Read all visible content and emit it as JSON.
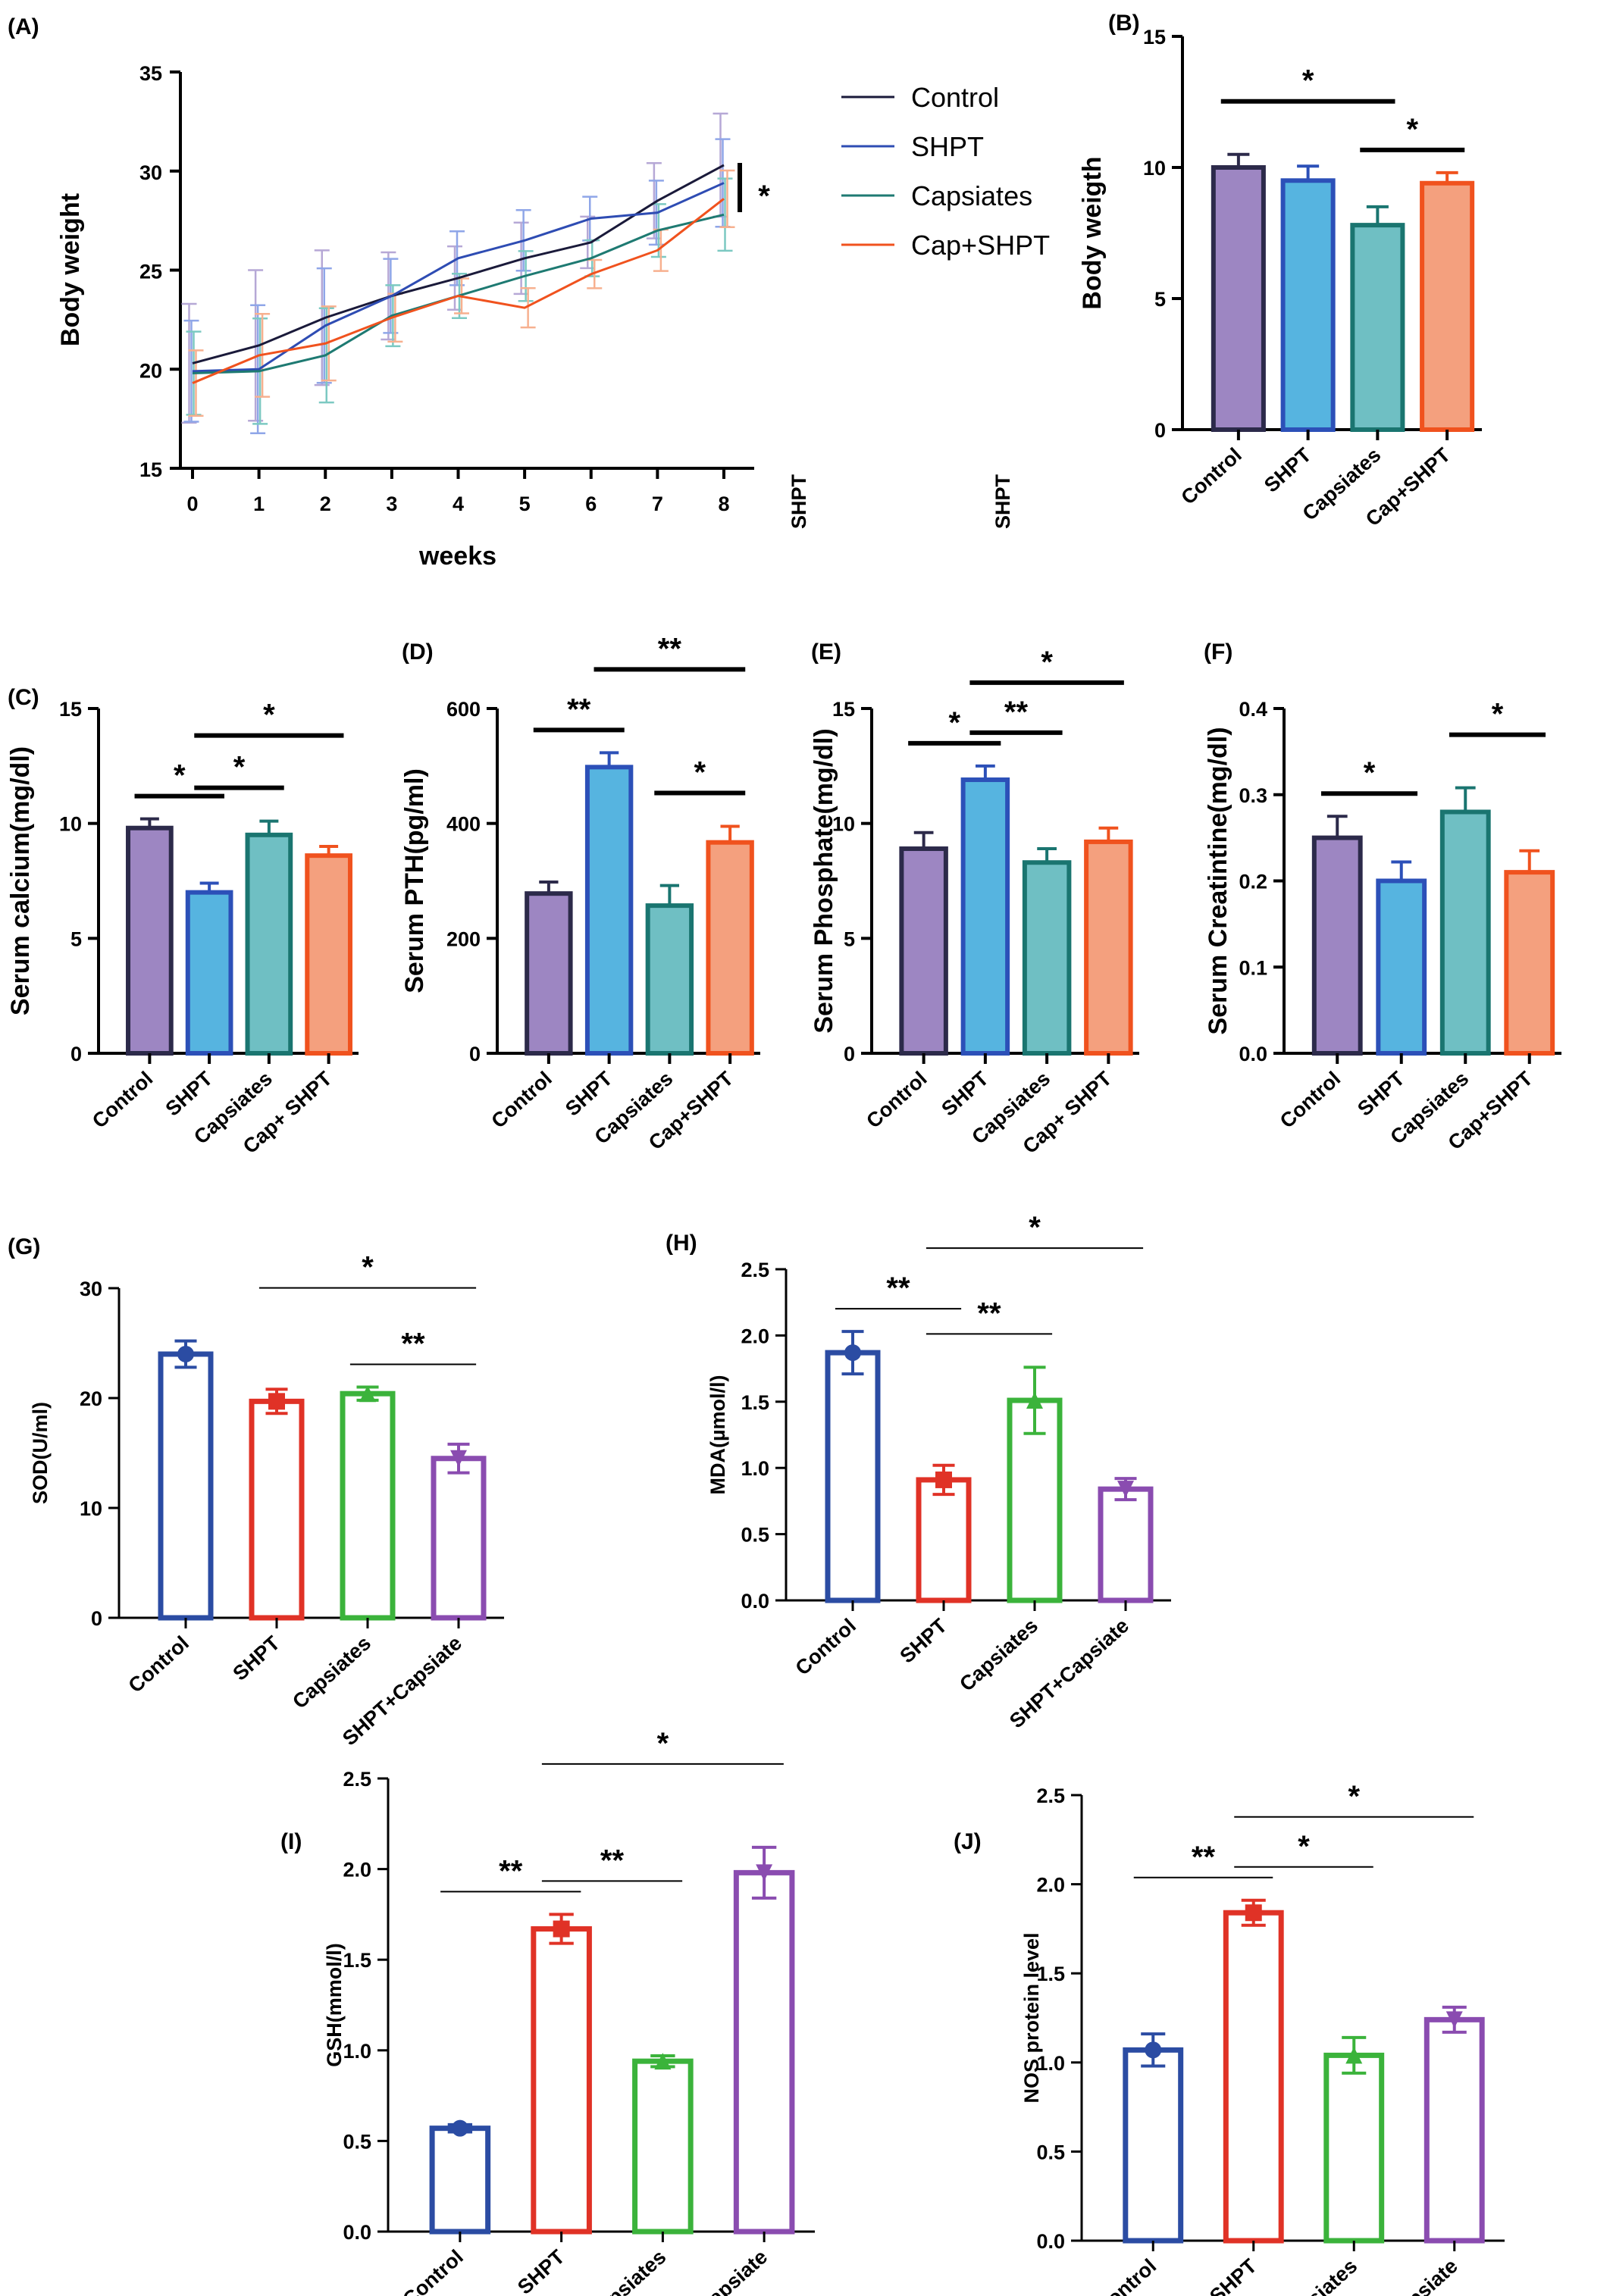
{
  "stray_labels": [
    "SHPT",
    "SHPT"
  ],
  "colors": {
    "lineControl": "#1a1a3a",
    "lineSHPT": "#2e4cb3",
    "lineCapsiates": "#1e7a72",
    "lineCapSHPT": "#f0521e",
    "barControlFill": "#9d86c2",
    "barControlEdge": "#2c2a4a",
    "barSHPTFill": "#56b4e0",
    "barSHPTEdge": "#2c50b8",
    "barCapFill": "#6fbfc3",
    "barCapEdge": "#1a7570",
    "barCapSHPTFill": "#f4a07e",
    "barCapSHPTEdge": "#f0521e",
    "hollowControl": "#2b4ca3",
    "hollowSHPT": "#e03226",
    "hollowCap": "#3bb33b",
    "hollowCombo": "#8a4cb0"
  },
  "chart_data": [
    {
      "panel": "(A)",
      "type": "line",
      "ylabel": "Body weight",
      "xlabel": "weeks",
      "x": [
        0,
        1,
        2,
        3,
        4,
        5,
        6,
        7,
        8
      ],
      "ylim": [
        15,
        35
      ],
      "yticks": [
        15,
        20,
        25,
        30,
        35
      ],
      "series": [
        {
          "name": "Control",
          "color": "#1a1a3a",
          "values": [
            20.3,
            21.2,
            22.6,
            23.7,
            24.6,
            25.6,
            26.4,
            28.5,
            30.3
          ]
        },
        {
          "name": "SHPT",
          "color": "#2e4cb3",
          "values": [
            19.9,
            20.0,
            22.2,
            23.7,
            25.6,
            26.5,
            27.6,
            27.9,
            29.4
          ]
        },
        {
          "name": "Capsiates",
          "color": "#1e7a72",
          "values": [
            19.8,
            19.9,
            20.7,
            22.7,
            23.7,
            24.7,
            25.6,
            27.0,
            27.8
          ]
        },
        {
          "name": "Cap+SHPT",
          "color": "#f0521e",
          "values": [
            19.3,
            20.7,
            21.3,
            22.6,
            23.7,
            23.1,
            24.8,
            26.0,
            28.6
          ]
        }
      ],
      "significance": [
        "*"
      ]
    },
    {
      "panel": "(B)",
      "type": "bar",
      "style": "filled",
      "ylabel": "Body weigth",
      "ylim": [
        0,
        15
      ],
      "yticks": [
        0,
        5,
        10,
        15
      ],
      "categories": [
        "Control",
        "SHPT",
        "Capsiates",
        "Cap+SHPT"
      ],
      "values": [
        10.0,
        9.5,
        7.8,
        9.4
      ],
      "errors": [
        0.5,
        0.55,
        0.7,
        0.4
      ],
      "significance": [
        {
          "from": 0,
          "to": 2,
          "label": "*"
        },
        {
          "from": 2,
          "to": 3,
          "label": "*"
        }
      ]
    },
    {
      "panel": "(C)",
      "type": "bar",
      "style": "filled",
      "ylabel": "Serum calcium(mg/dl)",
      "ylim": [
        0,
        15
      ],
      "yticks": [
        0,
        5,
        10,
        15
      ],
      "categories": [
        "Control",
        "SHPT",
        "Capsiates",
        "Cap+ SHPT"
      ],
      "values": [
        9.8,
        7.0,
        9.5,
        8.6
      ],
      "errors": [
        0.4,
        0.4,
        0.6,
        0.4
      ],
      "significance": [
        {
          "from": 0,
          "to": 1,
          "label": "*"
        },
        {
          "from": 1,
          "to": 2,
          "label": "*"
        },
        {
          "from": 1,
          "to": 3,
          "label": "*"
        }
      ]
    },
    {
      "panel": "(D)",
      "type": "bar",
      "style": "filled",
      "ylabel": "Serum PTH(pg/ml)",
      "ylim": [
        0,
        600
      ],
      "yticks": [
        0,
        200,
        400,
        600
      ],
      "categories": [
        "Control",
        "SHPT",
        "Capsiates",
        "Cap+SHPT"
      ],
      "values": [
        278,
        498,
        257,
        367
      ],
      "errors": [
        20,
        25,
        35,
        28
      ],
      "significance": [
        {
          "from": 0,
          "to": 1,
          "label": "**"
        },
        {
          "from": 1,
          "to": 3,
          "label": "**"
        },
        {
          "from": 2,
          "to": 3,
          "label": "*"
        }
      ]
    },
    {
      "panel": "(E)",
      "type": "bar",
      "style": "filled",
      "ylabel": "Serum Phosphate(mg/dl)",
      "ylim": [
        0,
        15
      ],
      "yticks": [
        0,
        5,
        10,
        15
      ],
      "categories": [
        "Control",
        "SHPT",
        "Capsiates",
        "Cap+ SHPT"
      ],
      "values": [
        8.9,
        11.9,
        8.3,
        9.2
      ],
      "errors": [
        0.7,
        0.6,
        0.6,
        0.6
      ],
      "significance": [
        {
          "from": 0,
          "to": 1,
          "label": "*"
        },
        {
          "from": 1,
          "to": 2,
          "label": "**"
        },
        {
          "from": 1,
          "to": 3,
          "label": "*"
        }
      ]
    },
    {
      "panel": "(F)",
      "type": "bar",
      "style": "filled",
      "ylabel": "Serum Creatintine(mg/dl)",
      "ylim": [
        0,
        0.4
      ],
      "yticks": [
        "0.0",
        "0.1",
        "0.2",
        "0.3",
        "0.4"
      ],
      "categories": [
        "Control",
        "SHPT",
        "Capsiates",
        "Cap+SHPT"
      ],
      "values": [
        0.25,
        0.2,
        0.28,
        0.21
      ],
      "errors": [
        0.025,
        0.022,
        0.028,
        0.025
      ],
      "significance": [
        {
          "from": 0,
          "to": 1,
          "label": "*"
        },
        {
          "from": 2,
          "to": 3,
          "label": "*"
        }
      ]
    },
    {
      "panel": "(G)",
      "type": "bar",
      "style": "hollow",
      "ylabel": "SOD(U/ml)",
      "ylim": [
        0,
        30
      ],
      "yticks": [
        0,
        10,
        20,
        30
      ],
      "categories": [
        "Control",
        "SHPT",
        "Capsiates",
        "SHPT+Capsiate"
      ],
      "values": [
        24.0,
        19.7,
        20.4,
        14.5
      ],
      "errors": [
        1.2,
        1.1,
        0.6,
        1.3
      ],
      "significance": [
        {
          "from": 1,
          "to": 3,
          "label": "*"
        },
        {
          "from": 2,
          "to": 3,
          "label": "**"
        }
      ]
    },
    {
      "panel": "(H)",
      "type": "bar",
      "style": "hollow",
      "ylabel": "MDA(µmol/l)",
      "ylim": [
        0,
        2.5
      ],
      "yticks": [
        "0.0",
        "0.5",
        "1.0",
        "1.5",
        "2.0",
        "2.5"
      ],
      "categories": [
        "Control",
        "SHPT",
        "Capsiates",
        "SHPT+Capsiate"
      ],
      "values": [
        1.87,
        0.91,
        1.51,
        0.84
      ],
      "errors": [
        0.16,
        0.11,
        0.25,
        0.08
      ],
      "significance": [
        {
          "from": 0,
          "to": 1,
          "label": "**"
        },
        {
          "from": 1,
          "to": 2,
          "label": "**"
        },
        {
          "from": 1,
          "to": 3,
          "label": "*"
        }
      ]
    },
    {
      "panel": "(I)",
      "type": "bar",
      "style": "hollow",
      "ylabel": "GSH(mmol/l)",
      "ylim": [
        0,
        2.5
      ],
      "yticks": [
        "0.0",
        "0.5",
        "1.0",
        "1.5",
        "2.0",
        "2.5"
      ],
      "categories": [
        "Control",
        "SHPT",
        "Capsiates",
        "SHPT+Capsiate"
      ],
      "values": [
        0.57,
        1.67,
        0.94,
        1.98
      ],
      "errors": [
        0.02,
        0.08,
        0.03,
        0.14
      ],
      "significance": [
        {
          "from": 0,
          "to": 1,
          "label": "**"
        },
        {
          "from": 1,
          "to": 2,
          "label": "**"
        },
        {
          "from": 1,
          "to": 3,
          "label": "*"
        }
      ]
    },
    {
      "panel": "(J)",
      "type": "bar",
      "style": "hollow",
      "ylabel": "NOS protein level",
      "ylim": [
        0,
        2.5
      ],
      "yticks": [
        "0.0",
        "0.5",
        "1.0",
        "1.5",
        "2.0",
        "2.5"
      ],
      "categories": [
        "Control",
        "SHPT",
        "Capsiates",
        "SHPT+Capsiate"
      ],
      "values": [
        1.07,
        1.84,
        1.04,
        1.24
      ],
      "errors": [
        0.09,
        0.07,
        0.1,
        0.07
      ],
      "significance": [
        {
          "from": 0,
          "to": 1,
          "label": "**"
        },
        {
          "from": 1,
          "to": 2,
          "label": "*"
        },
        {
          "from": 1,
          "to": 3,
          "label": "*"
        }
      ]
    }
  ]
}
